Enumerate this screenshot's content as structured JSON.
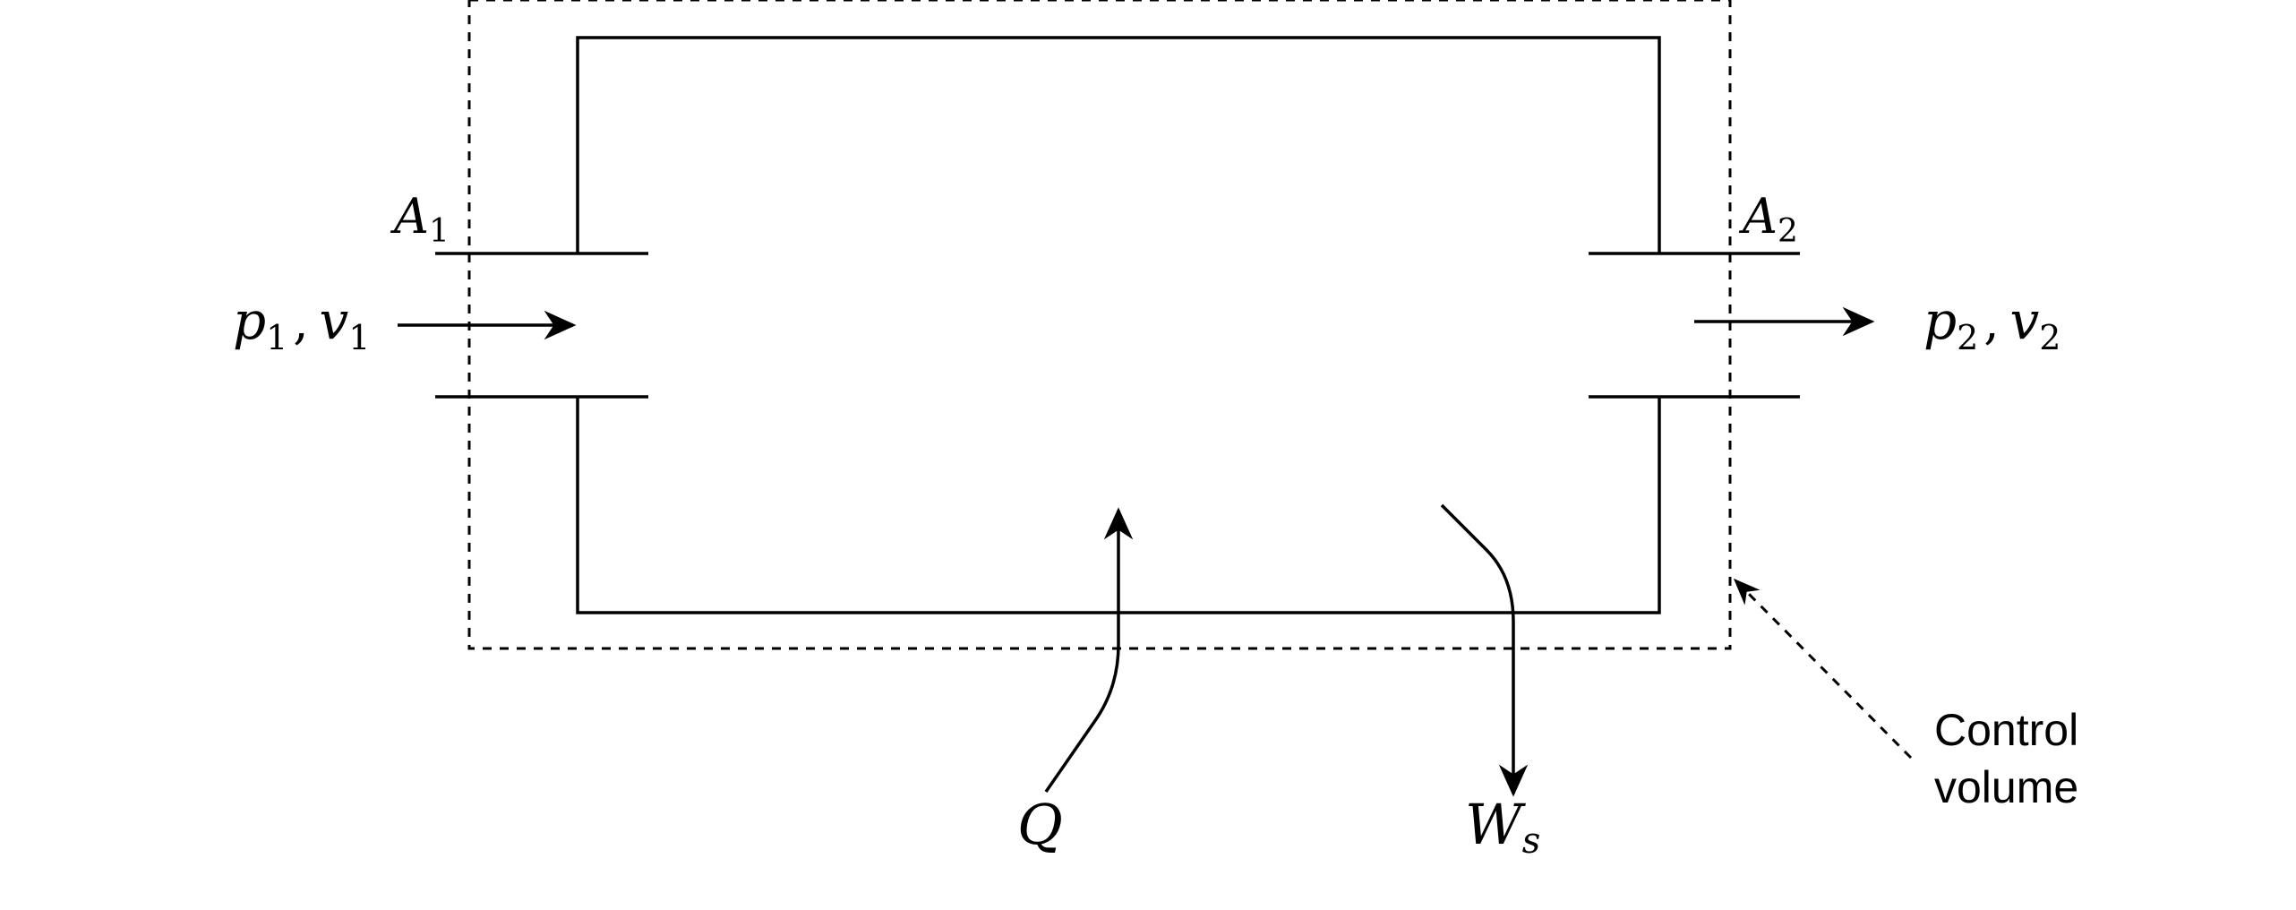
{
  "labels": {
    "a1": {
      "main": "A",
      "sub": "1"
    },
    "a2": {
      "main": "A",
      "sub": "2"
    },
    "inlet": {
      "p": "p",
      "p_sub": "1",
      "comma": ",",
      "v": "v",
      "v_sub": "1"
    },
    "outlet": {
      "p": "p",
      "p_sub": "2",
      "comma": ",",
      "v": "v",
      "v_sub": "2"
    },
    "heat": "Q",
    "work": {
      "main": "W",
      "sub": "s"
    },
    "control_volume": [
      "Control",
      "volume"
    ]
  }
}
